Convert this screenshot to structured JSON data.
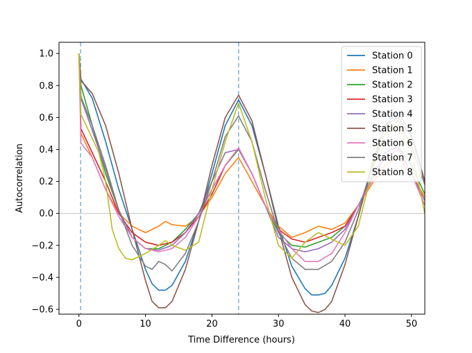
{
  "chart_data": {
    "type": "line",
    "title": "",
    "xlabel": "Time Difference (hours)",
    "ylabel": "Autocorrelation",
    "xlim": [
      -3,
      52
    ],
    "ylim": [
      -0.63,
      1.07
    ],
    "xticks": [
      0,
      10,
      20,
      30,
      40,
      50
    ],
    "yticks": [
      -0.6,
      -0.4,
      -0.2,
      0.0,
      0.2,
      0.4,
      0.6,
      0.8,
      1.0
    ],
    "ytick_labels": [
      "−0.6",
      "−0.4",
      "−0.2",
      "0.0",
      "0.2",
      "0.4",
      "0.6",
      "0.8",
      "1.0"
    ],
    "xtick_labels": [
      "0",
      "10",
      "20",
      "30",
      "40",
      "50"
    ],
    "reference_lines": {
      "vertical": [
        0.25,
        24
      ],
      "horizontal": [
        0
      ]
    },
    "grid": false,
    "legend_position": "top-right",
    "series": [
      {
        "name": "Station 0",
        "color": "#1f77b4",
        "x": [
          0,
          0.3,
          2,
          4,
          6,
          8,
          10,
          11,
          12,
          13,
          14,
          16,
          18,
          20,
          22,
          24,
          26,
          28,
          30,
          32,
          34,
          35,
          36,
          37,
          38,
          40,
          42,
          44,
          46,
          48,
          50,
          52
        ],
        "y": [
          1.0,
          0.84,
          0.72,
          0.45,
          0.15,
          -0.1,
          -0.35,
          -0.44,
          -0.48,
          -0.48,
          -0.45,
          -0.3,
          -0.05,
          0.25,
          0.55,
          0.71,
          0.55,
          0.25,
          -0.08,
          -0.33,
          -0.47,
          -0.51,
          -0.51,
          -0.5,
          -0.45,
          -0.28,
          -0.02,
          0.28,
          0.55,
          0.63,
          0.5,
          0.2
        ]
      },
      {
        "name": "Station 1",
        "color": "#ff7f0e",
        "x": [
          0,
          0.3,
          2,
          4,
          6,
          8,
          10,
          12,
          13,
          14,
          16,
          18,
          20,
          22,
          24,
          26,
          28,
          30,
          32,
          34,
          36,
          38,
          40,
          42,
          44,
          46,
          48,
          50,
          52
        ],
        "y": [
          1.0,
          0.5,
          0.35,
          0.15,
          0.0,
          -0.08,
          -0.12,
          -0.08,
          -0.05,
          -0.07,
          -0.08,
          -0.02,
          0.1,
          0.25,
          0.35,
          0.2,
          0.05,
          -0.08,
          -0.15,
          -0.12,
          -0.08,
          -0.1,
          -0.06,
          0.05,
          0.18,
          0.3,
          0.35,
          0.25,
          0.1
        ]
      },
      {
        "name": "Station 2",
        "color": "#2ca02c",
        "x": [
          0,
          0.3,
          2,
          4,
          6,
          8,
          10,
          12,
          14,
          16,
          18,
          20,
          22,
          24,
          26,
          28,
          30,
          32,
          34,
          36,
          38,
          40,
          42,
          44,
          46,
          48,
          50,
          52
        ],
        "y": [
          1.0,
          0.8,
          0.55,
          0.25,
          0.02,
          -0.15,
          -0.22,
          -0.22,
          -0.18,
          -0.1,
          0.0,
          0.15,
          0.3,
          0.4,
          0.25,
          0.05,
          -0.12,
          -0.2,
          -0.21,
          -0.18,
          -0.15,
          -0.08,
          0.05,
          0.22,
          0.38,
          0.42,
          0.3,
          0.12
        ]
      },
      {
        "name": "Station 3",
        "color": "#d62728",
        "x": [
          0,
          0.3,
          2,
          4,
          6,
          8,
          10,
          12,
          14,
          16,
          18,
          20,
          22,
          24,
          26,
          28,
          30,
          32,
          34,
          36,
          38,
          40,
          42,
          44,
          46,
          48,
          50,
          52
        ],
        "y": [
          1.0,
          0.53,
          0.38,
          0.2,
          0.0,
          -0.12,
          -0.18,
          -0.2,
          -0.18,
          -0.12,
          -0.02,
          0.12,
          0.3,
          0.41,
          0.25,
          0.05,
          -0.1,
          -0.16,
          -0.18,
          -0.15,
          -0.12,
          -0.08,
          0.05,
          0.2,
          0.35,
          0.4,
          0.25,
          0.05
        ]
      },
      {
        "name": "Station 4",
        "color": "#9467bd",
        "x": [
          0,
          0.3,
          2,
          4,
          6,
          8,
          10,
          12,
          14,
          16,
          18,
          20,
          22,
          24,
          26,
          28,
          30,
          32,
          34,
          36,
          38,
          40,
          42,
          44,
          46,
          48,
          50,
          52
        ],
        "y": [
          1.0,
          0.72,
          0.52,
          0.28,
          0.02,
          -0.15,
          -0.22,
          -0.23,
          -0.2,
          -0.12,
          0.0,
          0.2,
          0.38,
          0.4,
          0.25,
          0.05,
          -0.15,
          -0.22,
          -0.24,
          -0.22,
          -0.18,
          -0.1,
          0.05,
          0.22,
          0.38,
          0.42,
          0.25,
          0.08
        ]
      },
      {
        "name": "Station 5",
        "color": "#8c564b",
        "x": [
          0,
          0.3,
          2,
          4,
          6,
          8,
          10,
          11,
          12,
          13,
          14,
          16,
          18,
          20,
          22,
          24,
          26,
          28,
          30,
          32,
          34,
          35,
          36,
          37,
          38,
          40,
          42,
          44,
          46,
          48,
          50,
          52
        ],
        "y": [
          1.0,
          0.83,
          0.75,
          0.55,
          0.25,
          -0.1,
          -0.42,
          -0.55,
          -0.59,
          -0.59,
          -0.55,
          -0.35,
          -0.05,
          0.3,
          0.6,
          0.74,
          0.58,
          0.25,
          -0.1,
          -0.4,
          -0.57,
          -0.61,
          -0.62,
          -0.6,
          -0.55,
          -0.32,
          -0.02,
          0.3,
          0.55,
          0.6,
          0.48,
          0.2
        ]
      },
      {
        "name": "Station 6",
        "color": "#e377c2",
        "x": [
          0,
          0.3,
          2,
          4,
          6,
          8,
          10,
          12,
          14,
          16,
          18,
          20,
          22,
          24,
          26,
          28,
          30,
          32,
          34,
          36,
          38,
          40,
          42,
          44,
          46,
          48,
          50,
          52
        ],
        "y": [
          1.0,
          0.44,
          0.35,
          0.15,
          -0.02,
          -0.15,
          -0.22,
          -0.24,
          -0.22,
          -0.15,
          -0.02,
          0.15,
          0.3,
          0.41,
          0.25,
          0.05,
          -0.1,
          -0.22,
          -0.3,
          -0.3,
          -0.25,
          -0.12,
          0.05,
          0.2,
          0.35,
          0.4,
          0.25,
          0.05
        ]
      },
      {
        "name": "Station 7",
        "color": "#7f7f7f",
        "x": [
          0,
          0.3,
          2,
          4,
          6,
          8,
          10,
          11,
          12,
          13,
          14,
          16,
          18,
          20,
          22,
          24,
          26,
          28,
          30,
          32,
          34,
          36,
          38,
          40,
          42,
          44,
          46,
          48,
          50,
          52
        ],
        "y": [
          1.0,
          0.73,
          0.55,
          0.3,
          0.02,
          -0.2,
          -0.33,
          -0.35,
          -0.3,
          -0.32,
          -0.36,
          -0.25,
          -0.05,
          0.2,
          0.48,
          0.61,
          0.45,
          0.15,
          -0.12,
          -0.28,
          -0.35,
          -0.35,
          -0.3,
          -0.18,
          0.02,
          0.28,
          0.5,
          0.58,
          0.42,
          0.18
        ]
      },
      {
        "name": "Station 8",
        "color": "#bcbd22",
        "x": [
          0,
          0.3,
          2,
          3,
          4,
          5,
          6,
          7,
          8,
          10,
          12,
          13,
          14,
          16,
          18,
          20,
          22,
          24,
          26,
          28,
          30,
          32,
          34,
          36,
          38,
          40,
          42,
          44,
          46,
          48,
          50,
          52
        ],
        "y": [
          1.0,
          0.62,
          0.47,
          0.38,
          0.2,
          -0.1,
          -0.22,
          -0.28,
          -0.29,
          -0.25,
          -0.2,
          -0.17,
          -0.2,
          -0.23,
          -0.18,
          0.15,
          0.45,
          0.69,
          0.45,
          0.1,
          -0.2,
          -0.28,
          -0.18,
          -0.12,
          -0.16,
          -0.2,
          -0.08,
          0.25,
          0.5,
          0.55,
          0.4,
          0.0
        ]
      }
    ]
  }
}
